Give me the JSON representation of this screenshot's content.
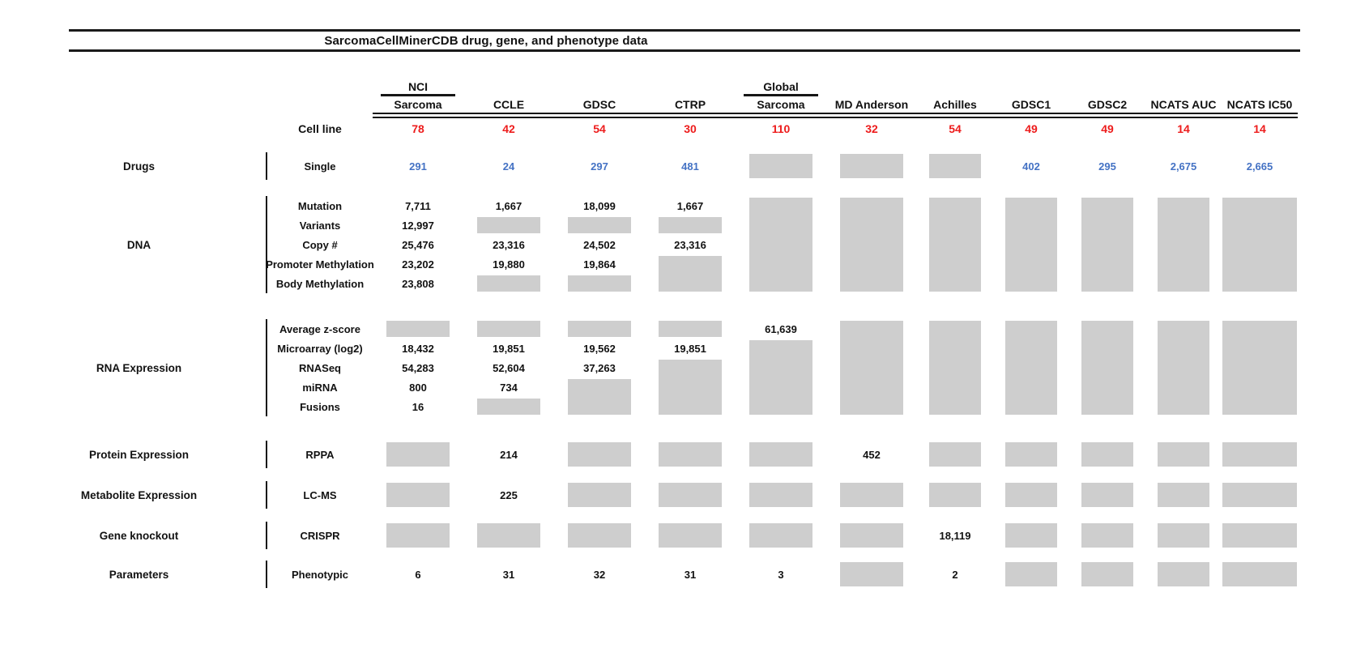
{
  "title": "SarcomaCellMinerCDB drug, gene, and phenotype data",
  "cell_line_row_label": "Cell line",
  "colors": {
    "count_red": "#ed1c1c",
    "drug_blue": "#4472c4",
    "box_gray": "#cecece"
  },
  "chart_data": {
    "type": "table",
    "title": "SarcomaCellMinerCDB drug, gene, and phenotype data",
    "columns": [
      {
        "top": "NCI",
        "name": "Sarcoma"
      },
      {
        "name": "CCLE"
      },
      {
        "name": "GDSC"
      },
      {
        "name": "CTRP"
      },
      {
        "top": "Global",
        "name": "Sarcoma"
      },
      {
        "name": "MD Anderson"
      },
      {
        "name": "Achilles"
      },
      {
        "name": "GDSC1"
      },
      {
        "name": "GDSC2"
      },
      {
        "name": "NCATS AUC"
      },
      {
        "name": "NCATS IC50"
      }
    ],
    "cell_line_counts": [
      "78",
      "42",
      "54",
      "30",
      "110",
      "32",
      "54",
      "49",
      "49",
      "14",
      "14"
    ],
    "sections": [
      {
        "category": "Drugs",
        "value_color": "#4472c4",
        "rows": [
          {
            "label": "Single",
            "cells": [
              "291",
              "24",
              "297",
              "481",
              {
                "box": 1
              },
              {
                "box": 1
              },
              {
                "box": 1
              },
              "402",
              "295",
              "2,675",
              "2,665"
            ]
          }
        ]
      },
      {
        "category": "DNA",
        "rows": [
          {
            "label": "Mutation",
            "cells": [
              "7,711",
              "1,667",
              "18,099",
              "1,667",
              {
                "box": 5
              },
              {
                "box": 5
              },
              {
                "box": 5
              },
              {
                "box": 5
              },
              {
                "box": 5
              },
              {
                "box": 5
              },
              {
                "box": 5
              }
            ]
          },
          {
            "label": "Variants",
            "cells": [
              "12,997",
              {
                "box": 1
              },
              {
                "box": 1
              },
              {
                "box": 1
              },
              null,
              null,
              null,
              null,
              null,
              null,
              null
            ]
          },
          {
            "label": "Copy #",
            "cells": [
              "25,476",
              "23,316",
              "24,502",
              "23,316",
              null,
              null,
              null,
              null,
              null,
              null,
              null
            ]
          },
          {
            "label": "Promoter Methylation",
            "cells": [
              "23,202",
              "19,880",
              "19,864",
              {
                "box": 2
              },
              null,
              null,
              null,
              null,
              null,
              null,
              null
            ]
          },
          {
            "label": "Body Methylation",
            "cells": [
              "23,808",
              {
                "box": 1
              },
              {
                "box": 1
              },
              null,
              null,
              null,
              null,
              null,
              null,
              null,
              null
            ]
          }
        ]
      },
      {
        "category": "RNA Expression",
        "rows": [
          {
            "label": "Average z-score",
            "cells": [
              {
                "box": 1
              },
              {
                "box": 1
              },
              {
                "box": 1
              },
              {
                "box": 1
              },
              "61,639",
              {
                "box": 5
              },
              {
                "box": 5
              },
              {
                "box": 5
              },
              {
                "box": 5
              },
              {
                "box": 5
              },
              {
                "box": 5
              }
            ]
          },
          {
            "label": "Microarray (log2)",
            "cells": [
              "18,432",
              "19,851",
              "19,562",
              "19,851",
              {
                "box": 4
              },
              null,
              null,
              null,
              null,
              null,
              null
            ]
          },
          {
            "label": "RNASeq",
            "cells": [
              "54,283",
              "52,604",
              "37,263",
              {
                "box": 3
              },
              null,
              null,
              null,
              null,
              null,
              null,
              null
            ]
          },
          {
            "label": "miRNA",
            "cells": [
              "800",
              "734",
              {
                "box": 2
              },
              null,
              null,
              null,
              null,
              null,
              null,
              null,
              null
            ]
          },
          {
            "label": "Fusions",
            "cells": [
              "16",
              {
                "box": 1
              },
              null,
              null,
              null,
              null,
              null,
              null,
              null,
              null,
              null
            ]
          }
        ]
      },
      {
        "category": "Protein Expression",
        "rows": [
          {
            "label": "RPPA",
            "cells": [
              {
                "box": 1
              },
              "214",
              {
                "box": 1
              },
              {
                "box": 1
              },
              {
                "box": 1
              },
              "452",
              {
                "box": 1
              },
              {
                "box": 1
              },
              {
                "box": 1
              },
              {
                "box": 1
              },
              {
                "box": 1
              }
            ]
          }
        ]
      },
      {
        "category": "Metabolite Expression",
        "rows": [
          {
            "label": "LC-MS",
            "cells": [
              {
                "box": 1
              },
              "225",
              {
                "box": 1
              },
              {
                "box": 1
              },
              {
                "box": 1
              },
              {
                "box": 1
              },
              {
                "box": 1
              },
              {
                "box": 1
              },
              {
                "box": 1
              },
              {
                "box": 1
              },
              {
                "box": 1
              }
            ]
          }
        ]
      },
      {
        "category": "Gene knockout",
        "rows": [
          {
            "label": "CRISPR",
            "cells": [
              {
                "box": 1
              },
              {
                "box": 1
              },
              {
                "box": 1
              },
              {
                "box": 1
              },
              {
                "box": 1
              },
              {
                "box": 1
              },
              "18,119",
              {
                "box": 1
              },
              {
                "box": 1
              },
              {
                "box": 1
              },
              {
                "box": 1
              }
            ]
          }
        ]
      },
      {
        "category": "Parameters",
        "rows": [
          {
            "label": "Phenotypic",
            "cells": [
              "6",
              "31",
              "32",
              "31",
              "3",
              {
                "box": 1
              },
              "2",
              {
                "box": 1
              },
              {
                "box": 1
              },
              {
                "box": 1
              },
              {
                "box": 1
              }
            ]
          }
        ]
      }
    ]
  }
}
